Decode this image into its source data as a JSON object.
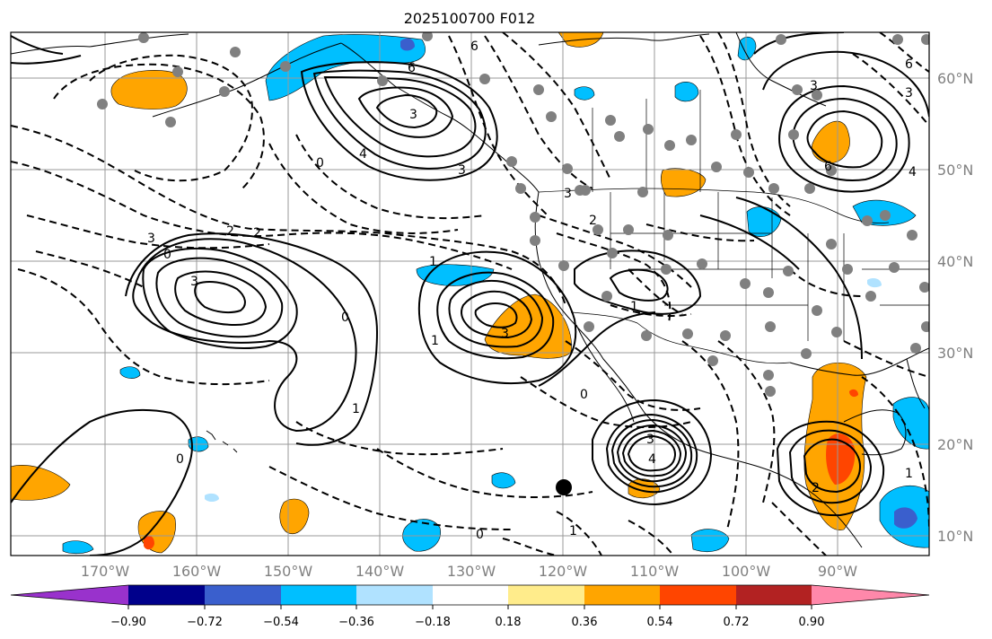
{
  "title": "2025100700 F012",
  "lat_labels": [
    "60°N",
    "50°N",
    "40°N",
    "30°N",
    "20°N",
    "10°N"
  ],
  "lon_labels": [
    "170°W",
    "160°W",
    "150°W",
    "140°W",
    "130°W",
    "120°W",
    "110°W",
    "100°W",
    "90°W"
  ],
  "colorbar": {
    "colors": [
      "#9932cc",
      "#00008b",
      "#3a5fcd",
      "#00bfff",
      "#b0e2ff",
      "#ffffff",
      "#ffec8b",
      "#ffa500",
      "#ff4500",
      "#b22222",
      "#ff88aa"
    ],
    "tick_labels": [
      "−0.90",
      "−0.72",
      "−0.54",
      "−0.36",
      "−0.18",
      "0.18",
      "0.36",
      "0.54",
      "0.72",
      "0.90"
    ]
  },
  "contour_labels": [
    "6",
    "6",
    "3",
    "4",
    "3",
    "2",
    "3",
    "2",
    "2",
    "3",
    "0",
    "0",
    "0",
    "1",
    "1",
    "3",
    "0",
    "1",
    "1",
    "3",
    "4",
    "0",
    "0",
    "1",
    "3",
    "6",
    "3",
    "6",
    "4",
    "2",
    "1",
    "3"
  ]
}
